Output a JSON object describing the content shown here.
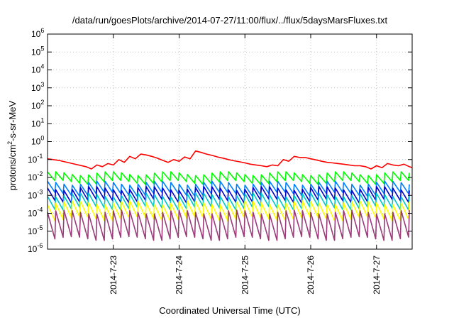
{
  "chart_data": {
    "type": "line",
    "title": "/data/run/goesPlots/archive/2014-07-27/11:00/flux/../flux/5daysMarsFluxes.txt",
    "xlabel": "Coordinated Universal Time (UTC)",
    "ylabel_parts": {
      "prefix": "protons/cm",
      "sup": "2",
      "suffix": "-s-sr-MeV"
    },
    "x_range": [
      "2014-07-22T00:00",
      "2014-07-27T13:00"
    ],
    "x_ticks": [
      "2014-7-23",
      "2014-7-24",
      "2014-7-25",
      "2014-7-26",
      "2014-7-27"
    ],
    "y_scale": "log",
    "ylim": [
      1e-06,
      1000000.0
    ],
    "y_ticks": [
      {
        "base": "10",
        "exp": "6"
      },
      {
        "base": "10",
        "exp": "5"
      },
      {
        "base": "10",
        "exp": "4"
      },
      {
        "base": "10",
        "exp": "3"
      },
      {
        "base": "10",
        "exp": "2"
      },
      {
        "base": "10",
        "exp": "1"
      },
      {
        "base": "10",
        "exp": "0"
      },
      {
        "base": "10",
        "exp": "-1"
      },
      {
        "base": "10",
        "exp": "-2"
      },
      {
        "base": "10",
        "exp": "-3"
      },
      {
        "base": "10",
        "exp": "-4"
      },
      {
        "base": "10",
        "exp": "-5"
      },
      {
        "base": "10",
        "exp": "-6"
      }
    ],
    "grid": true,
    "series": [
      {
        "color": "#ff0000",
        "x_hours": [
          0,
          4,
          9,
          14,
          16,
          18,
          20,
          22,
          24,
          26,
          28,
          30,
          32,
          34,
          36,
          38,
          40,
          42,
          44,
          46,
          48,
          50,
          52,
          54,
          56,
          58,
          60,
          62,
          64,
          66,
          68,
          70,
          72,
          74,
          76,
          78,
          80,
          82,
          84,
          86,
          88,
          90,
          92,
          94,
          96,
          98,
          100,
          102,
          104,
          106,
          108,
          110,
          112,
          114,
          116,
          118,
          120,
          122,
          124,
          126,
          128,
          130,
          132,
          133
        ],
        "values": [
          0.11,
          0.09,
          0.06,
          0.04,
          0.03,
          0.05,
          0.04,
          0.06,
          0.05,
          0.1,
          0.07,
          0.15,
          0.11,
          0.2,
          0.18,
          0.15,
          0.12,
          0.09,
          0.07,
          0.1,
          0.08,
          0.14,
          0.11,
          0.3,
          0.25,
          0.2,
          0.17,
          0.14,
          0.12,
          0.1,
          0.085,
          0.075,
          0.065,
          0.055,
          0.05,
          0.045,
          0.04,
          0.05,
          0.045,
          0.1,
          0.08,
          0.15,
          0.13,
          0.13,
          0.11,
          0.095,
          0.08,
          0.07,
          0.065,
          0.06,
          0.055,
          0.05,
          0.045,
          0.045,
          0.04,
          0.03,
          0.045,
          0.035,
          0.06,
          0.05,
          0.045,
          0.055,
          0.04,
          0.035
        ]
      },
      {
        "color": "#00ff00",
        "spiky": true,
        "top": 0.017,
        "bottom": 0.0055
      },
      {
        "color": "#0080ff",
        "spiky": true,
        "top": 0.005,
        "bottom": 0.0012
      },
      {
        "color": "#0000cc",
        "spiky": true,
        "top": 0.0025,
        "bottom": 0.0005
      },
      {
        "color": "#00c8c8",
        "spiky": true,
        "top": 0.0011,
        "bottom": 0.0002
      },
      {
        "color": "#ffff00",
        "spiky": true,
        "top": 0.0004,
        "bottom": 5e-05
      },
      {
        "color": "#9b3b7a",
        "spiky": true,
        "top": 0.00012,
        "bottom": 4e-06
      }
    ]
  }
}
